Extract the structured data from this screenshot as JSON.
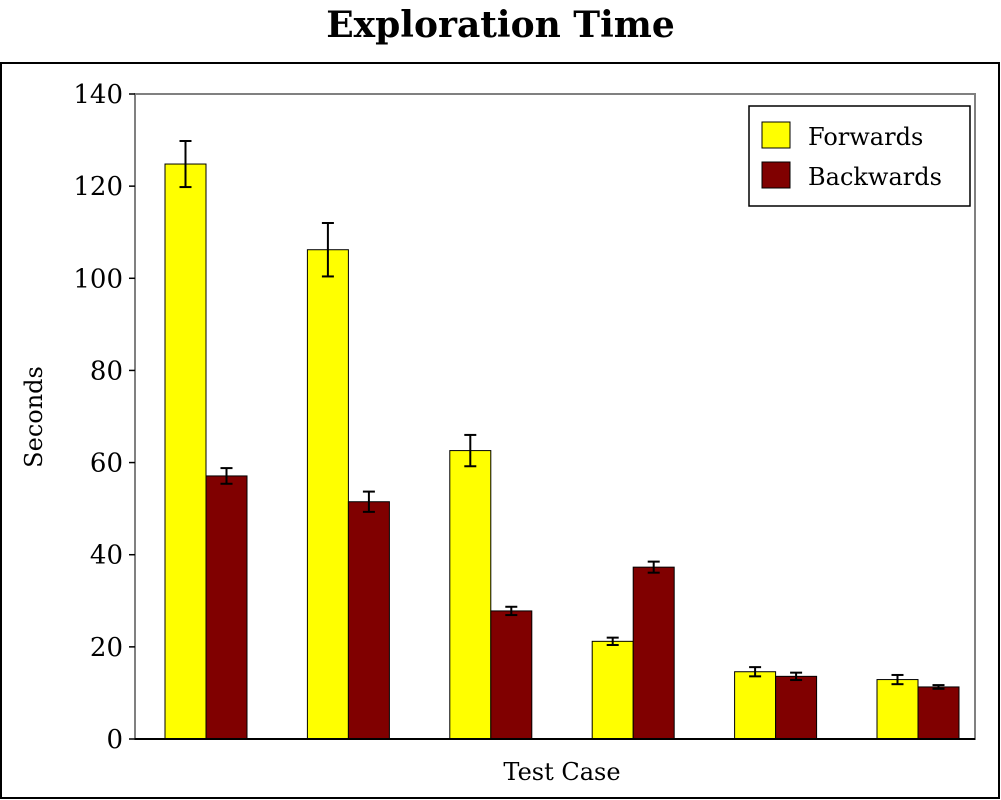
{
  "chart_data": {
    "type": "bar",
    "title": "Exploration Time",
    "xlabel": "Test Case",
    "ylabel": "Seconds",
    "ylim": [
      0,
      140
    ],
    "yticks": [
      0,
      20,
      40,
      60,
      80,
      100,
      120,
      140
    ],
    "categories": [
      "",
      "",
      "",
      "",
      "",
      ""
    ],
    "grid": false,
    "legend": "top-right",
    "series": [
      {
        "name": "Forwards",
        "color": "#ffff00",
        "values": [
          124.8,
          106.2,
          62.6,
          21.2,
          14.6,
          12.9
        ],
        "error": [
          5.0,
          5.8,
          3.4,
          0.8,
          1.0,
          1.0
        ]
      },
      {
        "name": "Backwards",
        "color": "#800000",
        "values": [
          57.1,
          51.5,
          27.8,
          37.3,
          13.6,
          11.3
        ],
        "error": [
          1.7,
          2.2,
          0.9,
          1.2,
          0.8,
          0.4
        ]
      }
    ]
  }
}
